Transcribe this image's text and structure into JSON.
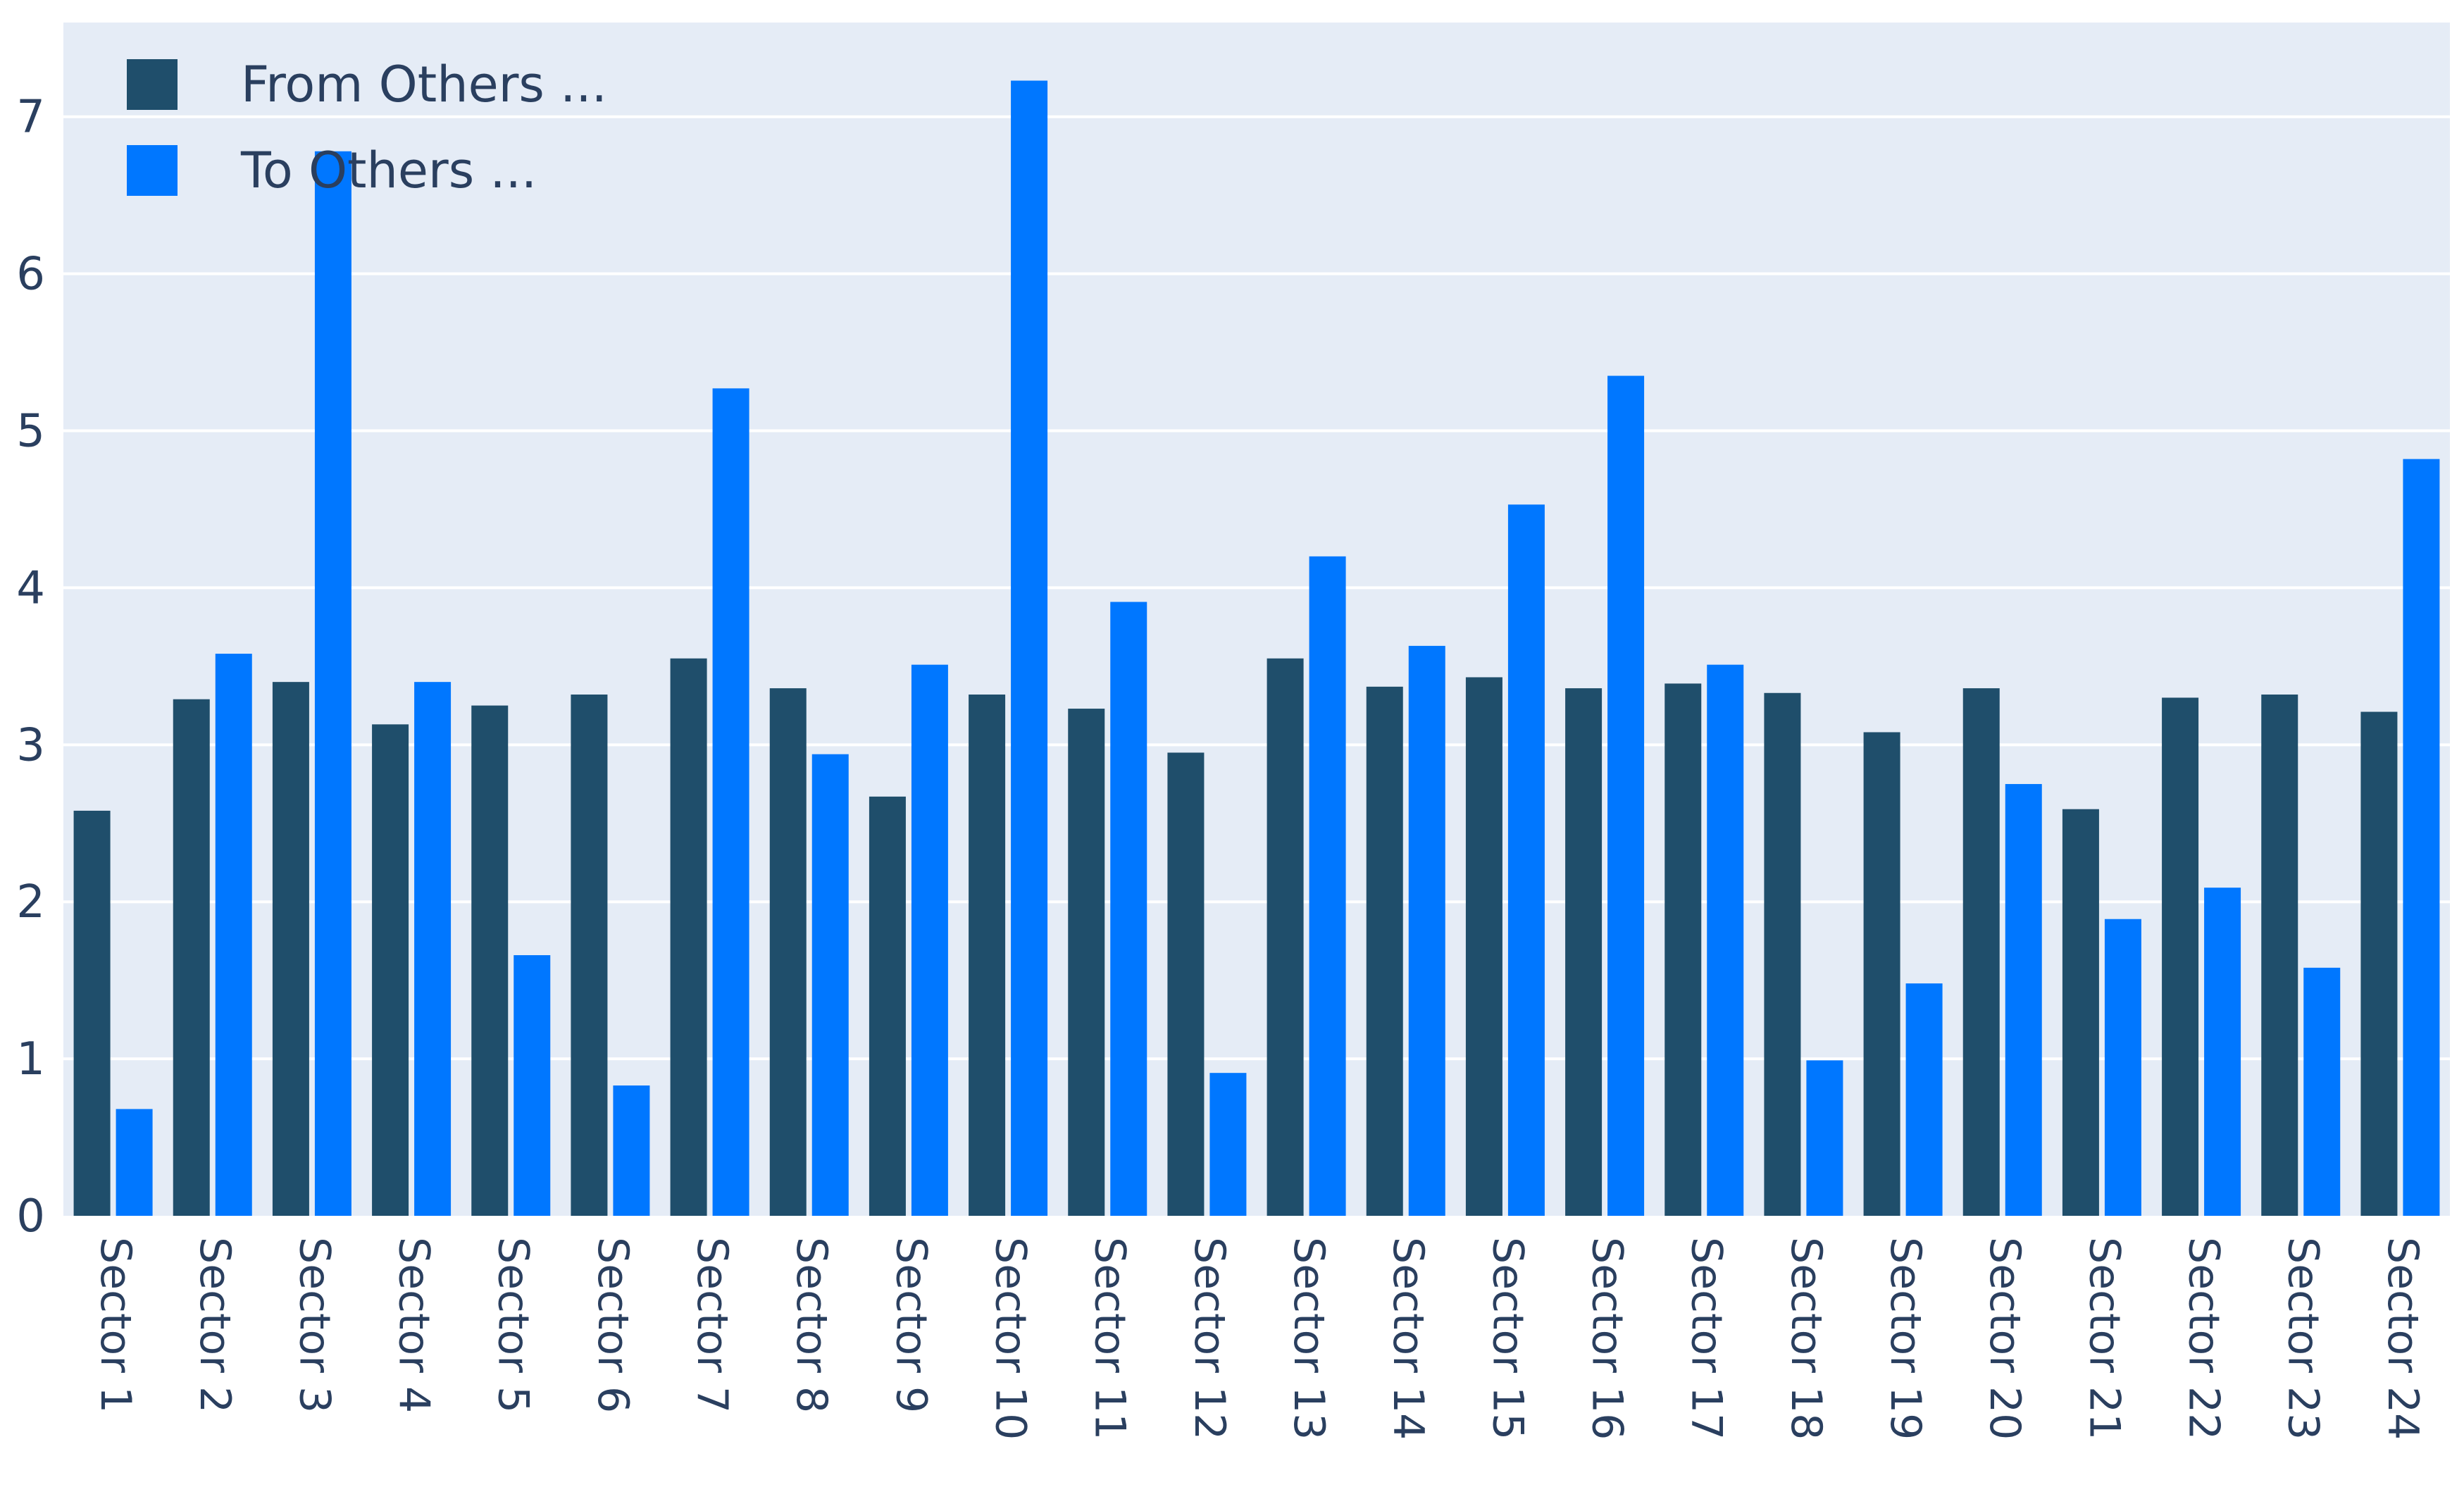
{
  "chart_data": {
    "type": "bar",
    "categories": [
      "Sector 1",
      "Sector 2",
      "Sector 3",
      "Sector 4",
      "Sector 5",
      "Sector 6",
      "Sector 7",
      "Sector 8",
      "Sector 9",
      "Sector 10",
      "Sector 11",
      "Sector 12",
      "Sector 13",
      "Sector 14",
      "Sector 15",
      "Sector 16",
      "Sector 17",
      "Sector 18",
      "Sector 19",
      "Sector 20",
      "Sector 21",
      "Sector 22",
      "Sector 23",
      "Sector 24"
    ],
    "series": [
      {
        "name": "From Others ...",
        "color": "#1f4e6b",
        "values": [
          2.58,
          3.29,
          3.4,
          3.13,
          3.25,
          3.32,
          3.55,
          3.36,
          2.67,
          3.32,
          3.23,
          2.95,
          3.55,
          3.37,
          3.43,
          3.36,
          3.39,
          3.33,
          3.08,
          3.36,
          2.59,
          3.3,
          3.32,
          3.21
        ]
      },
      {
        "name": "To Others ...",
        "color": "#0077ff",
        "values": [
          0.68,
          3.58,
          6.78,
          3.4,
          1.66,
          0.83,
          5.27,
          2.94,
          3.51,
          7.23,
          3.91,
          0.91,
          4.2,
          3.63,
          4.53,
          5.35,
          3.51,
          0.99,
          1.48,
          2.75,
          1.89,
          2.09,
          1.58,
          4.82
        ]
      }
    ],
    "yticks": [
      0,
      1,
      2,
      3,
      4,
      5,
      6,
      7
    ],
    "ylim": [
      0,
      7.6
    ],
    "grid": true,
    "legend_position": "top-left",
    "plot_background": "#e5ecf6",
    "gridline_color": "#ffffff",
    "axis_text_color": "#2a3f5f"
  }
}
